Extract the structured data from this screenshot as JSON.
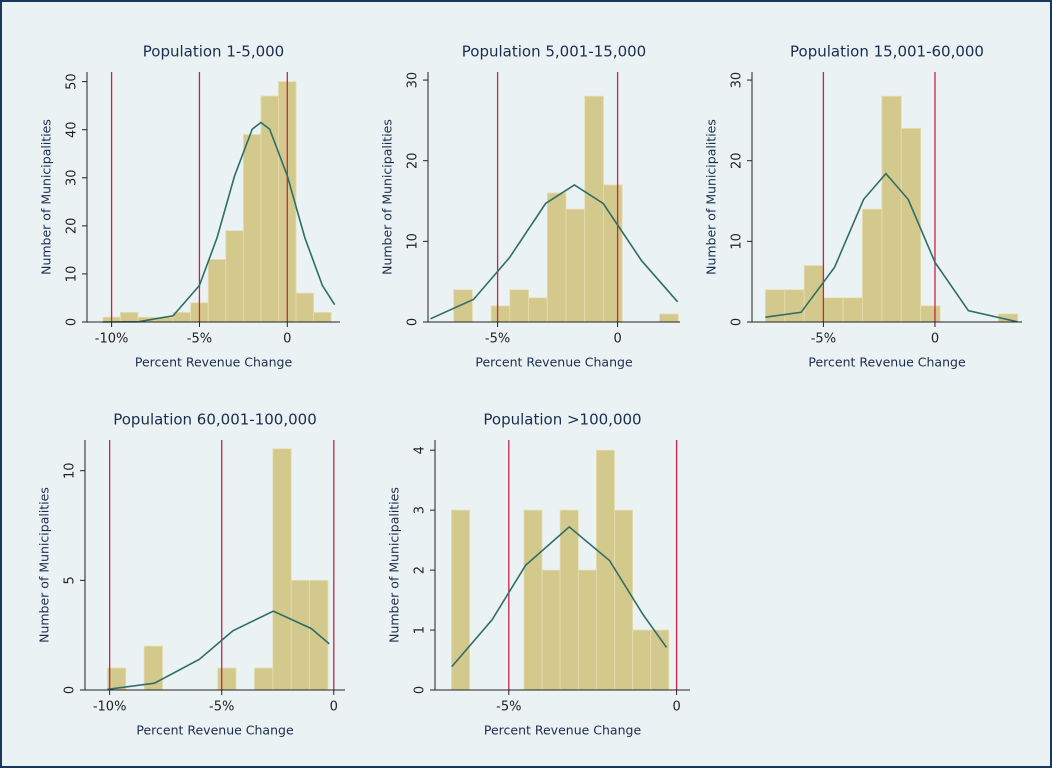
{
  "chart_data": [
    {
      "type": "histogram",
      "title": "Population 1-5,000",
      "xlabel": "Percent Revenue Change",
      "ylabel": "Number of Municipalities",
      "bins": [
        -10.5,
        -9.5,
        -8.5,
        -7.5,
        -6.5,
        -5.5,
        -4.5,
        -3.5,
        -2.5,
        -1.5,
        -0.5,
        0.5,
        1.5,
        2.5
      ],
      "values": [
        1,
        2,
        1,
        1,
        2,
        4,
        13,
        19,
        39,
        47,
        50,
        6,
        2
      ],
      "color": "#d4c98c",
      "curve": {
        "x": [
          -10.5,
          -8.5,
          -6.5,
          -5,
          -4,
          -3,
          -2,
          -1.5,
          -1,
          0,
          1,
          2,
          2.7
        ],
        "values": [
          0,
          0.05,
          1.3,
          7.6,
          17.5,
          30.4,
          40.1,
          41.5,
          40.1,
          30.4,
          17.5,
          7.6,
          3.6
        ],
        "color": "#2f6e68"
      },
      "vlines": [
        -10,
        -5,
        0
      ],
      "vline_color": "#c8234a",
      "xlim": [
        -11.4,
        3.0
      ],
      "ylim": [
        0,
        52
      ],
      "xticks": [
        {
          "value": -10,
          "label": "-10%"
        },
        {
          "value": -5,
          "label": "-5%"
        },
        0
      ],
      "yticks": [
        0,
        10,
        20,
        30,
        40,
        50
      ]
    },
    {
      "type": "histogram",
      "title": "Population 5,001-15,000",
      "xlabel": "Percent Revenue Change",
      "ylabel": "Number of Municipalities",
      "bins": [
        -6.83,
        -6.05,
        -5.27,
        -4.49,
        -3.71,
        -2.93,
        -2.15,
        -1.37,
        -0.59,
        0.19,
        0.97,
        1.75,
        2.53
      ],
      "values": [
        4,
        0,
        2,
        4,
        3,
        16,
        14,
        28,
        17,
        0,
        0,
        1
      ],
      "color": "#d4c98c",
      "curve": {
        "x": [
          -7.8,
          -6,
          -4.5,
          -3,
          -1.8,
          -0.6,
          1,
          2.5
        ],
        "values": [
          0.4,
          2.8,
          8.0,
          14.7,
          17,
          14.7,
          7.6,
          2.5
        ],
        "color": "#2f6e68"
      },
      "vlines": [
        -5,
        0
      ],
      "vline_color": "#c8234a",
      "xlim": [
        -7.9,
        2.6
      ],
      "ylim": [
        0,
        31
      ],
      "xticks": [
        {
          "value": -5,
          "label": "-5%"
        },
        0
      ],
      "yticks": [
        0,
        10,
        20,
        30
      ]
    },
    {
      "type": "histogram",
      "title": "Population 15,001-60,000",
      "xlabel": "Percent Revenue Change",
      "ylabel": "Number of Municipalities",
      "bins": [
        -7.6,
        -6.73,
        -5.86,
        -4.99,
        -4.12,
        -3.25,
        -2.38,
        -1.51,
        -0.64,
        0.23,
        1.1,
        1.97,
        2.84,
        3.71
      ],
      "values": [
        4,
        4,
        7,
        3,
        3,
        14,
        28,
        24,
        2,
        0,
        0,
        0,
        1
      ],
      "color": "#d4c98c",
      "curve": {
        "x": [
          -7.6,
          -6,
          -4.5,
          -3.2,
          -2.2,
          -1.2,
          0,
          1.5,
          3.7
        ],
        "values": [
          0.6,
          1.2,
          6.8,
          15.2,
          18.4,
          15.2,
          7.4,
          1.4,
          0.03
        ],
        "color": "#2f6e68"
      },
      "vlines": [
        -5,
        0
      ],
      "vline_color": "#c8234a",
      "xlim": [
        -8.2,
        3.9
      ],
      "ylim": [
        0,
        31
      ],
      "xticks": [
        {
          "value": -5,
          "label": "-5%"
        },
        0
      ],
      "yticks": [
        0,
        10,
        20,
        30
      ]
    },
    {
      "type": "histogram",
      "title": "Population 60,001-100,000",
      "xlabel": "Percent Revenue Change",
      "ylabel": "Number of Municipalities",
      "bins": [
        -10.1,
        -9.28,
        -8.46,
        -7.64,
        -6.82,
        -6.0,
        -5.18,
        -4.36,
        -3.54,
        -2.72,
        -1.9,
        -1.08,
        -0.26
      ],
      "values": [
        1,
        0,
        2,
        0,
        0,
        0,
        1,
        0,
        1,
        11,
        5,
        5
      ],
      "color": "#d4c98c",
      "curve": {
        "x": [
          -10.1,
          -8,
          -6,
          -4.5,
          -2.7,
          -1,
          -0.2
        ],
        "values": [
          0.03,
          0.31,
          1.4,
          2.7,
          3.6,
          2.8,
          2.1
        ],
        "color": "#2f6e68"
      },
      "vlines": [
        -10,
        -5,
        0
      ],
      "vline_color": "#c8234a",
      "xlim": [
        -11.1,
        0.5
      ],
      "ylim": [
        0,
        11.4
      ],
      "xticks": [
        {
          "value": -10,
          "label": "-10%"
        },
        {
          "value": -5,
          "label": "-5%"
        },
        0
      ],
      "yticks": [
        0,
        5,
        10
      ]
    },
    {
      "type": "histogram",
      "title": "Population >100,000",
      "xlabel": "Percent Revenue Change",
      "ylabel": "Number of Municipalities",
      "bins": [
        -6.71,
        -6.17,
        -5.63,
        -5.09,
        -4.55,
        -4.01,
        -3.47,
        -2.93,
        -2.39,
        -1.85,
        -1.31,
        -0.77,
        -0.23
      ],
      "values": [
        3,
        0,
        0,
        0,
        3,
        2,
        3,
        2,
        4,
        3,
        1,
        1
      ],
      "color": "#d4c98c",
      "curve": {
        "x": [
          -6.7,
          -5.5,
          -4.5,
          -3.2,
          -2,
          -1,
          -0.3
        ],
        "values": [
          0.39,
          1.17,
          2.08,
          2.72,
          2.16,
          1.26,
          0.71
        ],
        "color": "#2f6e68"
      },
      "vlines": [
        -5,
        0
      ],
      "vline_color": "#c8234a",
      "xlim": [
        -7.2,
        0.4
      ],
      "ylim": [
        0,
        4.17
      ],
      "xticks": [
        {
          "value": -5,
          "label": "-5%"
        },
        0
      ],
      "yticks": [
        0,
        1,
        2,
        3,
        4
      ]
    }
  ]
}
